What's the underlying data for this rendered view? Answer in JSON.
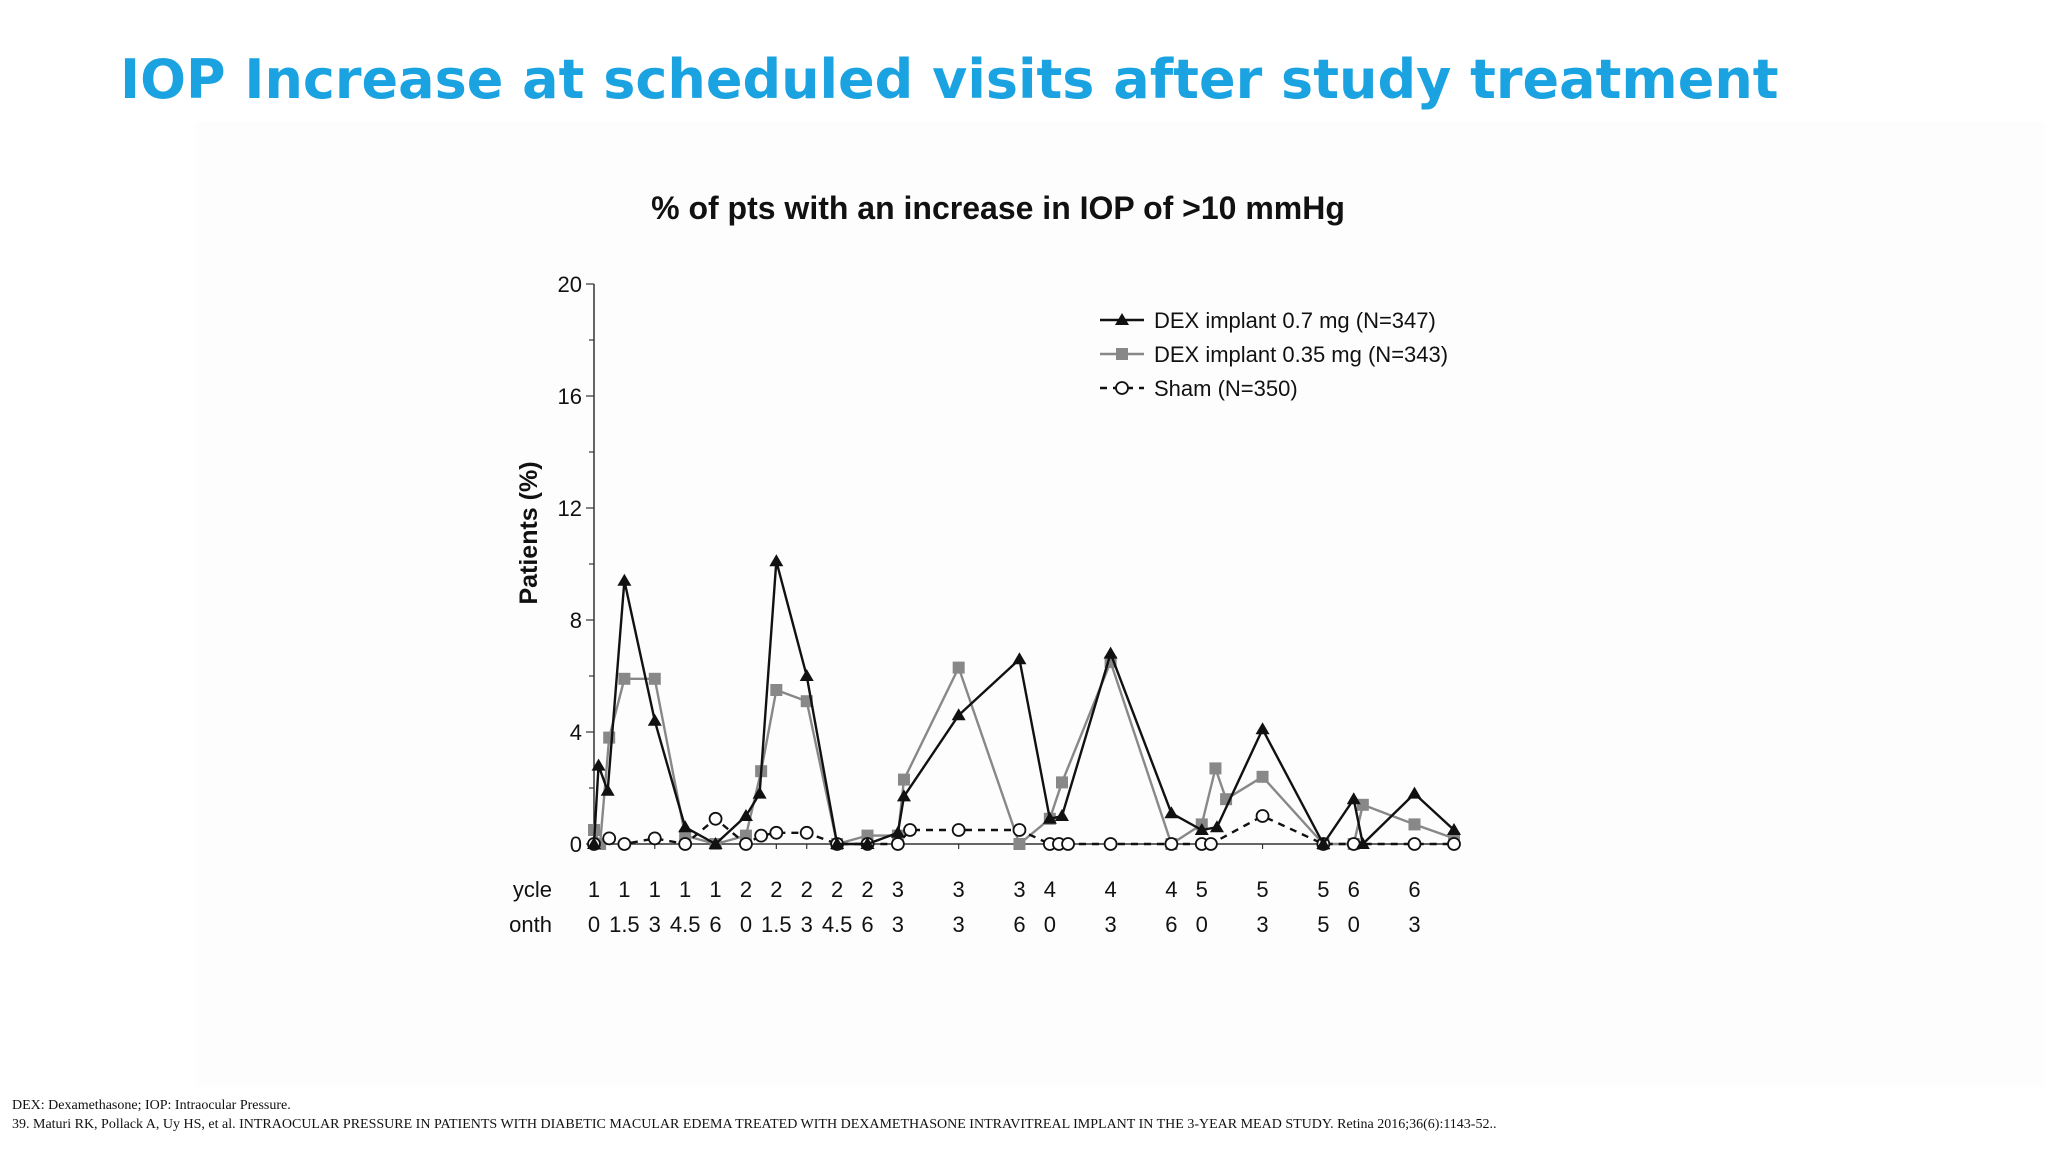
{
  "slide": {
    "title": "IOP Increase at scheduled visits after study treatment",
    "title_color": "#1aa3e0"
  },
  "footnotes": {
    "abbreviations": "DEX: Dexamethasone; IOP: Intraocular Pressure.",
    "reference": "39. Maturi RK, Pollack A, Uy HS, et al. INTRAOCULAR PRESSURE IN PATIENTS WITH DIABETIC MACULAR EDEMA TREATED WITH DEXAMETHASONE INTRAVITREAL IMPLANT IN THE 3-YEAR MEAD STUDY. Retina 2016;36(6):1143-52.."
  },
  "chart_data": {
    "type": "line",
    "title": "% of pts with an increase in IOP of >10 mmHg",
    "ylabel": "Patients (%)",
    "ylim": [
      0,
      20
    ],
    "yticks": [
      0,
      4,
      8,
      12,
      16,
      20
    ],
    "grid": false,
    "legend_position": "top-right",
    "x_row_labels": [
      "ycle",
      "onth"
    ],
    "x_ticks": [
      {
        "cycle": "1",
        "month": "0",
        "t": 0
      },
      {
        "cycle": "1",
        "month": "1.5",
        "t": 1
      },
      {
        "cycle": "1",
        "month": "3",
        "t": 2
      },
      {
        "cycle": "1",
        "month": "4.5",
        "t": 3
      },
      {
        "cycle": "1",
        "month": "6",
        "t": 4
      },
      {
        "cycle": "2",
        "month": "0",
        "t": 5
      },
      {
        "cycle": "2",
        "month": "1.5",
        "t": 6
      },
      {
        "cycle": "2",
        "month": "3",
        "t": 7
      },
      {
        "cycle": "2",
        "month": "4.5",
        "t": 8
      },
      {
        "cycle": "2",
        "month": "6",
        "t": 9
      },
      {
        "cycle": "3",
        "month": "3",
        "t": 10
      },
      {
        "cycle": "3",
        "month": "3",
        "t": 12
      },
      {
        "cycle": "3",
        "month": "6",
        "t": 14
      },
      {
        "cycle": "4",
        "month": "0",
        "t": 15
      },
      {
        "cycle": "4",
        "month": "3",
        "t": 17
      },
      {
        "cycle": "4",
        "month": "6",
        "t": 19
      },
      {
        "cycle": "5",
        "month": "0",
        "t": 20
      },
      {
        "cycle": "5",
        "month": "3",
        "t": 22
      },
      {
        "cycle": "5",
        "month": "5",
        "t": 24
      },
      {
        "cycle": "6",
        "month": "0",
        "t": 25
      },
      {
        "cycle": "6",
        "month": "3",
        "t": 27
      }
    ],
    "x_range": [
      0,
      28.3
    ],
    "series": [
      {
        "name": "DEX implant 0.7 mg (N=347)",
        "color": "#111111",
        "marker": "triangle",
        "dash": "solid",
        "x": [
          0,
          0.15,
          0.45,
          1,
          2,
          3,
          4,
          5,
          5.45,
          6,
          7,
          8,
          9,
          10,
          10.2,
          12,
          14,
          15,
          15.4,
          17,
          19,
          20,
          20.5,
          22,
          24,
          25,
          25.3,
          27,
          28.3
        ],
        "y": [
          0,
          2.8,
          1.9,
          9.4,
          4.4,
          0.6,
          0,
          1.0,
          1.8,
          10.1,
          6.0,
          0,
          0,
          0.4,
          1.7,
          4.6,
          6.6,
          0.9,
          1.0,
          6.8,
          1.1,
          0.5,
          0.6,
          4.1,
          0,
          1.6,
          0,
          1.8,
          0.5
        ]
      },
      {
        "name": "DEX implant 0.35 mg (N=343)",
        "color": "#888888",
        "marker": "square",
        "dash": "solid",
        "x": [
          0,
          0.2,
          0.5,
          1,
          2,
          3,
          4,
          5,
          5.5,
          6,
          7,
          8,
          9,
          10,
          10.2,
          12,
          14,
          15,
          15.4,
          17,
          19,
          20,
          20.45,
          20.8,
          22,
          24,
          25,
          25.3,
          27,
          28.3
        ],
        "y": [
          0.5,
          0,
          3.8,
          5.9,
          5.9,
          0.3,
          0,
          0.3,
          2.6,
          5.5,
          5.1,
          0,
          0.3,
          0.3,
          2.3,
          6.3,
          0,
          0.9,
          2.2,
          6.5,
          0,
          0.7,
          2.7,
          1.6,
          2.4,
          0,
          0,
          1.4,
          0.7,
          0.2
        ]
      },
      {
        "name": "Sham (N=350)",
        "color": "#111111",
        "marker": "circle",
        "dash": "dashed",
        "x": [
          0,
          0.5,
          1,
          2,
          3,
          4,
          5,
          5.5,
          6,
          7,
          8,
          9,
          10,
          10.4,
          12,
          14,
          15,
          15.3,
          15.6,
          17,
          19,
          20,
          20.3,
          22,
          24,
          25,
          27,
          28.3
        ],
        "y": [
          0,
          0.2,
          0,
          0.2,
          0,
          0.9,
          0,
          0.3,
          0.4,
          0.4,
          0,
          0,
          0,
          0.5,
          0.5,
          0.5,
          0,
          0,
          0,
          0,
          0,
          0,
          0,
          1.0,
          0,
          0,
          0,
          0
        ]
      }
    ]
  }
}
